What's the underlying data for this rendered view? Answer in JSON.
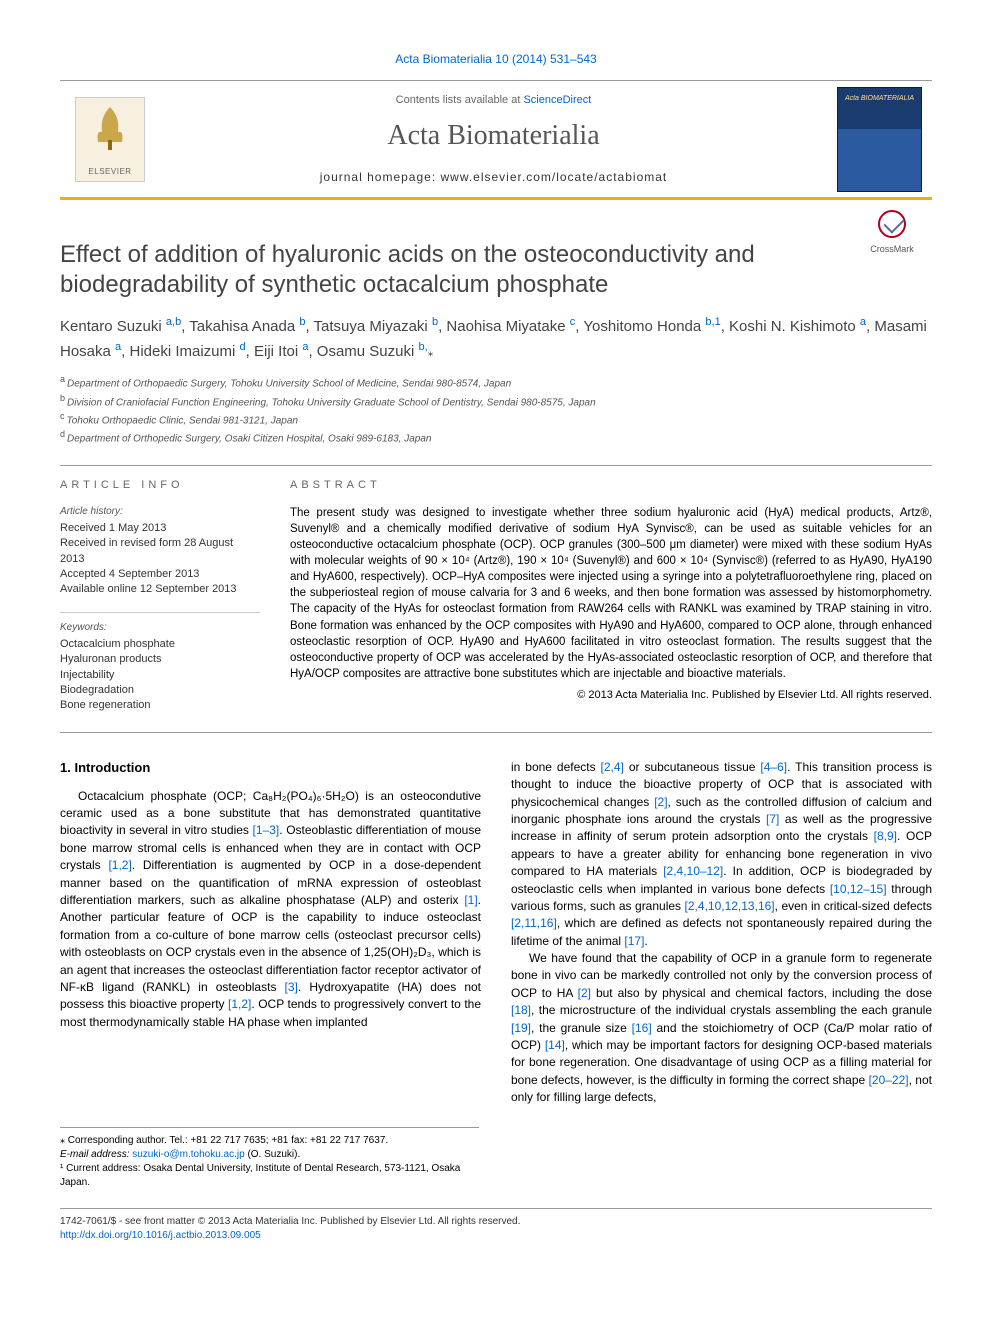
{
  "colors": {
    "link": "#0066cc",
    "accent_rule": "#f5a623",
    "text": "#000000",
    "muted": "#555555",
    "cover_top": "#1a3b6e",
    "cover_bottom": "#2b5aa0",
    "crossmark_ring": "#b00020"
  },
  "top_citation": "Acta Biomaterialia 10 (2014) 531–543",
  "banner": {
    "contents_prefix": "Contents lists available at ",
    "contents_link": "ScienceDirect",
    "journal_name": "Acta Biomaterialia",
    "homepage_prefix": "journal homepage: ",
    "homepage_url": "www.elsevier.com/locate/actabiomat",
    "publisher_label": "ELSEVIER",
    "cover_small_title": "Acta BIOMATERIALIA"
  },
  "crossmark_label": "CrossMark",
  "title": "Effect of addition of hyaluronic acids on the osteoconductivity and biodegradability of synthetic octacalcium phosphate",
  "authors_html": "Kentaro Suzuki <sup class='aff'>a,b</sup>, Takahisa Anada <sup class='aff'>b</sup>, Tatsuya Miyazaki <sup class='aff'>b</sup>, Naohisa Miyatake <sup class='aff'>c</sup>, Yoshitomo Honda <sup class='aff'>b,1</sup>, Koshi N. Kishimoto <sup class='aff'>a</sup>, Masami Hosaka <sup class='aff'>a</sup>, Hideki Imaizumi <sup class='aff'>d</sup>, Eiji Itoi <sup class='aff'>a</sup>, Osamu Suzuki <sup class='aff'>b,</sup><span class='star-icon'>⁎</span>",
  "affiliations": [
    {
      "key": "a",
      "text": "Department of Orthopaedic Surgery, Tohoku University School of Medicine, Sendai 980-8574, Japan"
    },
    {
      "key": "b",
      "text": "Division of Craniofacial Function Engineering, Tohoku University Graduate School of Dentistry, Sendai 980-8575, Japan"
    },
    {
      "key": "c",
      "text": "Tohoku Orthopaedic Clinic, Sendai 981-3121, Japan"
    },
    {
      "key": "d",
      "text": "Department of Orthopedic Surgery, Osaki Citizen Hospital, Osaki 989-6183, Japan"
    }
  ],
  "article_info_label": "ARTICLE INFO",
  "abstract_label": "ABSTRACT",
  "history_label": "Article history:",
  "history": [
    "Received 1 May 2013",
    "Received in revised form 28 August 2013",
    "Accepted 4 September 2013",
    "Available online 12 September 2013"
  ],
  "keywords_label": "Keywords:",
  "keywords": [
    "Octacalcium phosphate",
    "Hyaluronan products",
    "Injectability",
    "Biodegradation",
    "Bone regeneration"
  ],
  "abstract": "The present study was designed to investigate whether three sodium hyaluronic acid (HyA) medical products, Artz®, Suvenyl® and a chemically modified derivative of sodium HyA Synvisc®, can be used as suitable vehicles for an osteoconductive octacalcium phosphate (OCP). OCP granules (300–500 μm diameter) were mixed with these sodium HyAs with molecular weights of 90 × 10⁴ (Artz®), 190 × 10⁴ (Suvenyl®) and 600 × 10⁴ (Synvisc®) (referred to as HyA90, HyA190 and HyA600, respectively). OCP–HyA composites were injected using a syringe into a polytetrafluoroethylene ring, placed on the subperiosteal region of mouse calvaria for 3 and 6 weeks, and then bone formation was assessed by histomorphometry. The capacity of the HyAs for osteoclast formation from RAW264 cells with RANKL was examined by TRAP staining in vitro. Bone formation was enhanced by the OCP composites with HyA90 and HyA600, compared to OCP alone, through enhanced osteoclastic resorption of OCP. HyA90 and HyA600 facilitated in vitro osteoclast formation. The results suggest that the osteoconductive property of OCP was accelerated by the HyAs-associated osteoclastic resorption of OCP, and therefore that HyA/OCP composites are attractive bone substitutes which are injectable and bioactive materials.",
  "copyright": "© 2013 Acta Materialia Inc. Published by Elsevier Ltd. All rights reserved.",
  "intro_heading": "1. Introduction",
  "intro_col1": "Octacalcium phosphate (OCP; Ca₈H₂(PO₄)₆·5H₂O) is an osteocondutive ceramic used as a bone substitute that has demonstrated quantitative bioactivity in several in vitro studies <span class='ref-link'>[1–3]</span>. Osteoblastic differentiation of mouse bone marrow stromal cells is enhanced when they are in contact with OCP crystals <span class='ref-link'>[1,2]</span>. Differentiation is augmented by OCP in a dose-dependent manner based on the quantification of mRNA expression of osteoblast differentiation markers, such as alkaline phosphatase (ALP) and osterix <span class='ref-link'>[1]</span>. Another particular feature of OCP is the capability to induce osteoclast formation from a co-culture of bone marrow cells (osteoclast precursor cells) with osteoblasts on OCP crystals even in the absence of 1,25(OH)₂D₃, which is an agent that increases the osteoclast differentiation factor receptor activator of NF-κB ligand (RANKL) in osteoblasts <span class='ref-link'>[3]</span>. Hydroxyapatite (HA) does not possess this bioactive property <span class='ref-link'>[1,2]</span>. OCP tends to progressively convert to the most thermodynamically stable HA phase when implanted",
  "intro_col2_p1": "in bone defects <span class='ref-link'>[2,4]</span> or subcutaneous tissue <span class='ref-link'>[4–6]</span>. This transition process is thought to induce the bioactive property of OCP that is associated with physicochemical changes <span class='ref-link'>[2]</span>, such as the controlled diffusion of calcium and inorganic phosphate ions around the crystals <span class='ref-link'>[7]</span> as well as the progressive increase in affinity of serum protein adsorption onto the crystals <span class='ref-link'>[8,9]</span>. OCP appears to have a greater ability for enhancing bone regeneration in vivo compared to HA materials <span class='ref-link'>[2,4,10–12]</span>. In addition, OCP is biodegraded by osteoclastic cells when implanted in various bone defects <span class='ref-link'>[10,12–15]</span> through various forms, such as granules <span class='ref-link'>[2,4,10,12,13,16]</span>, even in critical-sized defects <span class='ref-link'>[2,11,16]</span>, which are defined as defects not spontaneously repaired during the lifetime of the animal <span class='ref-link'>[17]</span>.",
  "intro_col2_p2": "We have found that the capability of OCP in a granule form to regenerate bone in vivo can be markedly controlled not only by the conversion process of OCP to HA <span class='ref-link'>[2]</span> but also by physical and chemical factors, including the dose <span class='ref-link'>[18]</span>, the microstructure of the individual crystals assembling the each granule <span class='ref-link'>[19]</span>, the granule size <span class='ref-link'>[16]</span> and the stoichiometry of OCP (Ca/P molar ratio of OCP) <span class='ref-link'>[14]</span>, which may be important factors for designing OCP-based materials for bone regeneration. One disadvantage of using OCP as a filling material for bone defects, however, is the difficulty in forming the correct shape <span class='ref-link'>[20–22]</span>, not only for filling large defects,",
  "footnotes": {
    "corresponding": "⁎ Corresponding author. Tel.: +81 22 717 7635; +81 fax: +81 22 717 7637.",
    "email_label": "E-mail address: ",
    "email": "suzuki-o@m.tohoku.ac.jp",
    "email_owner": " (O. Suzuki).",
    "note1": "¹ Current address: Osaka Dental University, Institute of Dental Research, 573-1121, Osaka Japan."
  },
  "footer": {
    "issn_line": "1742-7061/$ - see front matter © 2013 Acta Materialia Inc. Published by Elsevier Ltd. All rights reserved.",
    "doi": "http://dx.doi.org/10.1016/j.actbio.2013.09.005"
  }
}
